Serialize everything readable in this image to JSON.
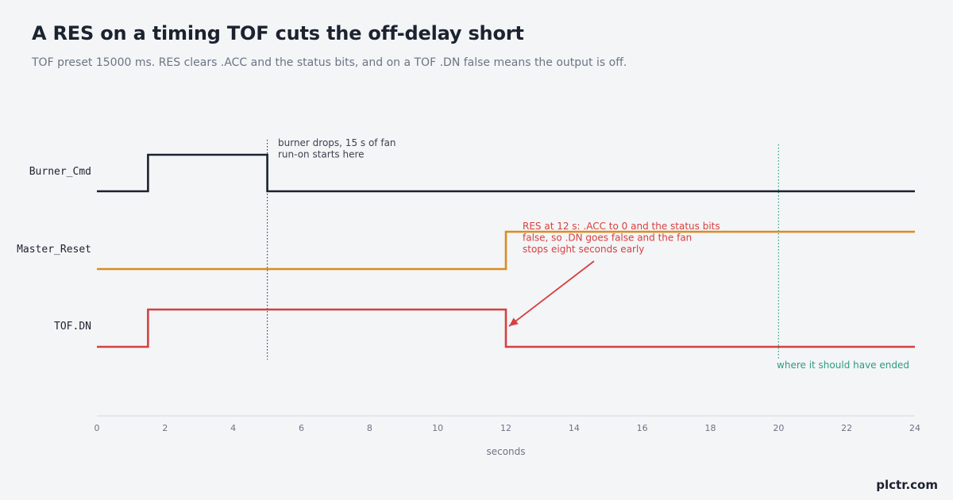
{
  "title": "A RES on a timing TOF cuts the off-delay short",
  "subtitle": "TOF preset 15000 ms. RES clears .ACC and the status bits, and on a TOF .DN false means the output is off.",
  "brand": "plctr.com",
  "colors": {
    "burner": "#1b2330",
    "reset": "#d98c1f",
    "tof": "#d64040",
    "marker": "#2a9d7c",
    "guide": "#3a4350"
  },
  "chart_data": {
    "type": "line",
    "step": true,
    "x_range": [
      0,
      24
    ],
    "xticks": [
      0,
      2,
      4,
      6,
      8,
      10,
      12,
      14,
      16,
      18,
      20,
      22,
      24
    ],
    "xlabel": "seconds",
    "grid": false,
    "series": [
      {
        "name": "Burner_Cmd",
        "color_key": "burner",
        "points": [
          [
            0,
            0
          ],
          [
            1.5,
            1
          ],
          [
            5,
            0
          ],
          [
            24,
            0
          ]
        ]
      },
      {
        "name": "Master_Reset",
        "color_key": "reset",
        "points": [
          [
            0,
            0
          ],
          [
            12,
            1
          ],
          [
            24,
            1
          ]
        ]
      },
      {
        "name": "TOF.DN",
        "color_key": "tof",
        "points": [
          [
            0,
            0
          ],
          [
            1.5,
            1
          ],
          [
            12,
            0
          ],
          [
            24,
            0
          ]
        ]
      }
    ],
    "markers": [
      {
        "x": 5,
        "color_key": "guide"
      },
      {
        "x": 20,
        "color_key": "marker"
      }
    ],
    "annotations": [
      {
        "lines": [
          "burner drops, 15 s of fan",
          "run-on starts here"
        ],
        "color_key": "guide"
      },
      {
        "lines": [
          "RES at 12 s: .ACC to 0 and the status bits",
          "false, so .DN goes false and the fan",
          "stops eight seconds early"
        ],
        "color_key": "tof",
        "arrow_to_x": 12
      },
      {
        "lines": [
          "where it should have ended"
        ],
        "color_key": "marker"
      }
    ]
  }
}
